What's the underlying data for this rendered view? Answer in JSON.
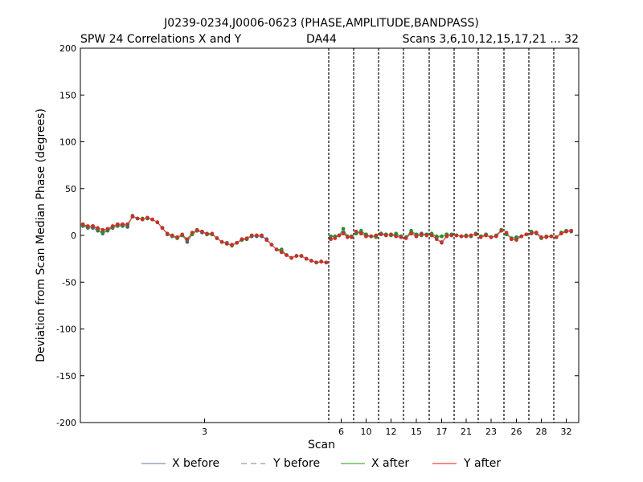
{
  "chart_data": {
    "type": "line",
    "title": "J0239-0234,J0006-0623 (PHASE,AMPLITUDE,BANDPASS)",
    "subtitle_left": "SPW 24 Correlations X and Y",
    "subtitle_center": "DA44",
    "subtitle_right": "Scans 3,6,10,12,15,17,21 ... 32",
    "xlabel": "Scan",
    "ylabel": "Deviation from Scan Median Phase (degrees)",
    "ylim": [
      -200,
      200
    ],
    "yticks": [
      200,
      150,
      100,
      50,
      0,
      -50,
      -100,
      -150,
      -200
    ],
    "scan_ticks": [
      {
        "label": "3",
        "seg": 0
      },
      {
        "label": "6",
        "seg": 1
      },
      {
        "label": "10",
        "seg": 2
      },
      {
        "label": "12",
        "seg": 3
      },
      {
        "label": "15",
        "seg": 4
      },
      {
        "label": "17",
        "seg": 5
      },
      {
        "label": "21",
        "seg": 6
      },
      {
        "label": "23",
        "seg": 7
      },
      {
        "label": "26",
        "seg": 8
      },
      {
        "label": "28",
        "seg": 9
      },
      {
        "label": "32",
        "seg": 10
      }
    ],
    "segments_points": [
      50,
      6,
      5,
      5,
      5,
      5,
      5,
      5,
      5,
      5,
      5
    ],
    "series": [
      {
        "name": "X before",
        "color": "#7f8fb0",
        "style": "solid",
        "values": [
          10,
          8,
          8,
          5,
          2,
          5,
          8,
          10,
          10,
          9,
          21,
          18,
          17,
          19,
          17,
          14,
          8,
          1,
          -1,
          -3,
          0,
          -7,
          1,
          5,
          3,
          1,
          1,
          -3,
          -7,
          -8,
          -11,
          -8,
          -5,
          -4,
          -1,
          -1,
          -1,
          -4,
          -10,
          -15,
          -15,
          -21,
          -24,
          -22,
          -22,
          -25,
          -27,
          -29,
          -28,
          -29,
          -1,
          -1,
          0,
          3,
          -1,
          -1,
          2,
          3,
          1,
          -1,
          -1,
          2,
          1,
          0,
          1,
          -1,
          -2,
          3,
          1,
          2,
          1,
          1,
          -2,
          -1,
          1,
          1,
          0,
          -1,
          0,
          -1,
          2,
          -1,
          1,
          -2,
          0,
          6,
          1,
          -3,
          -2,
          -1,
          1,
          4,
          2,
          -3,
          -1,
          -1,
          -2,
          3,
          5,
          4
        ]
      },
      {
        "name": "Y before",
        "color": "#9a9a9a",
        "style": "dashed",
        "values": [
          11,
          9,
          10,
          6,
          4,
          6,
          9,
          11,
          11,
          11,
          20,
          18,
          18,
          18,
          17,
          14,
          8,
          1,
          0,
          -2,
          0,
          -5,
          2,
          5,
          4,
          1,
          1,
          -3,
          -7,
          -8,
          -10,
          -8,
          -4,
          -4,
          0,
          0,
          0,
          -5,
          -10,
          -15,
          -17,
          -21,
          -24,
          -22,
          -22,
          -25,
          -27,
          -29,
          -28,
          -29,
          -4,
          -3,
          0,
          2,
          -2,
          -2,
          4,
          2,
          -1,
          -1,
          0,
          1,
          0,
          1,
          -1,
          -2,
          -3,
          2,
          -1,
          1,
          0,
          0,
          -4,
          -7,
          -1,
          0,
          0,
          -1,
          -1,
          0,
          1,
          -2,
          0,
          -2,
          -1,
          5,
          2,
          -4,
          -4,
          -1,
          1,
          2,
          3,
          -2,
          -2,
          -1,
          -2,
          2,
          4,
          5
        ]
      },
      {
        "name": "X after",
        "color": "#4daf3a",
        "style": "solid",
        "values": [
          11,
          9,
          10,
          6,
          3,
          6,
          9,
          11,
          11,
          11,
          20,
          18,
          18,
          18,
          17,
          14,
          8,
          1,
          -1,
          -3,
          0,
          -5,
          1,
          5,
          4,
          1,
          1,
          -3,
          -7,
          -9,
          -11,
          -8,
          -5,
          -4,
          0,
          0,
          0,
          -5,
          -10,
          -15,
          -16,
          -21,
          -24,
          -22,
          -22,
          -25,
          -27,
          -29,
          -28,
          -29,
          -1,
          -1,
          0,
          7,
          -1,
          -1,
          2,
          5,
          1,
          -1,
          -2,
          2,
          1,
          0,
          2,
          -1,
          -2,
          5,
          1,
          0,
          1,
          2,
          -1,
          -1,
          1,
          1,
          0,
          -1,
          0,
          -1,
          2,
          -1,
          1,
          -2,
          0,
          6,
          1,
          -3,
          -2,
          -1,
          1,
          4,
          3,
          -3,
          -1,
          -1,
          -2,
          3,
          5,
          5
        ]
      },
      {
        "name": "Y after",
        "color": "#e8483a",
        "style": "solid",
        "values": [
          12,
          10,
          10,
          8,
          6,
          7,
          10,
          12,
          12,
          12,
          20,
          18,
          17,
          19,
          17,
          14,
          8,
          2,
          0,
          -2,
          1,
          -4,
          3,
          6,
          4,
          2,
          2,
          -3,
          -7,
          -9,
          -10,
          -8,
          -4,
          -3,
          0,
          0,
          0,
          -5,
          -10,
          -15,
          -18,
          -21,
          -24,
          -22,
          -22,
          -25,
          -27,
          -29,
          -28,
          -29,
          -4,
          -3,
          0,
          2,
          -2,
          -2,
          4,
          2,
          -1,
          -1,
          0,
          1,
          0,
          1,
          -1,
          -2,
          -3,
          2,
          -1,
          1,
          0,
          0,
          -4,
          -8,
          -1,
          0,
          0,
          -1,
          -1,
          0,
          1,
          -2,
          0,
          -2,
          -1,
          5,
          3,
          -4,
          -5,
          -1,
          1,
          2,
          3,
          -2,
          -2,
          -1,
          -2,
          2,
          4,
          5
        ]
      }
    ],
    "legend": {
      "position": "bottom",
      "items": [
        "X before",
        "Y before",
        "X after",
        "Y after"
      ]
    },
    "grid": false
  }
}
